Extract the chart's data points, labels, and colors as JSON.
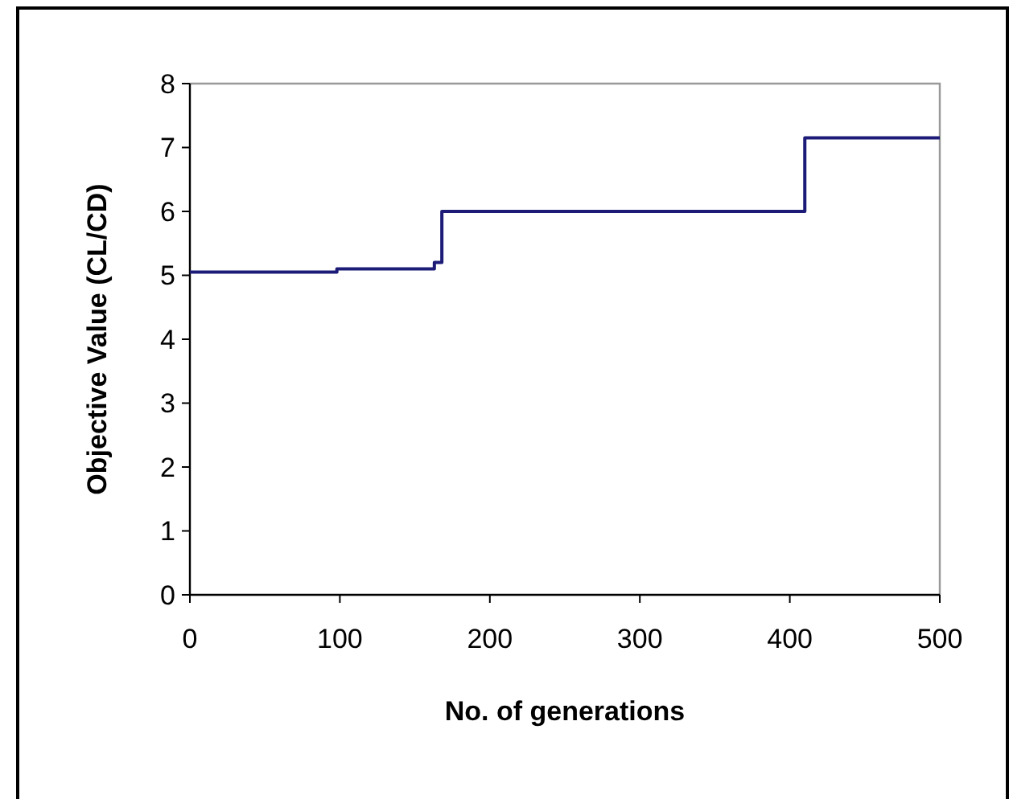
{
  "chart_data": {
    "type": "step",
    "xlabel": "No. of generations",
    "ylabel": "Objective Value (CL/CD)",
    "x": [
      0,
      98,
      163,
      168,
      410,
      500
    ],
    "series": [
      {
        "color": "#1c1c78",
        "values": [
          5.05,
          5.1,
          5.2,
          6,
          7.15,
          7.15
        ]
      }
    ],
    "xlim": [
      0,
      500
    ],
    "xticks": [
      0,
      100,
      200,
      300,
      400,
      500
    ],
    "ylim": [
      0,
      8
    ],
    "yticks": [
      0,
      1,
      2,
      3,
      4,
      5,
      6,
      7,
      8
    ],
    "grid": false,
    "marker": "none",
    "line_style": "solid"
  }
}
